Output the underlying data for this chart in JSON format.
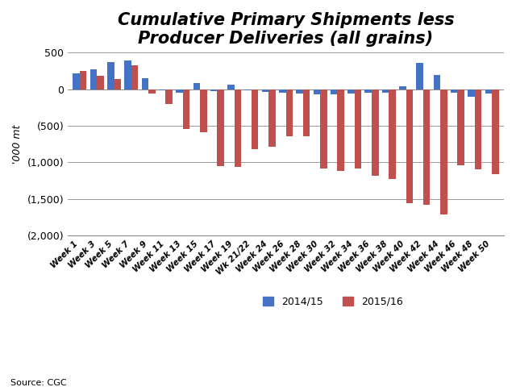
{
  "title": "Cumulative Primary Shipments less\nProducer Deliveries (all grains)",
  "ylabel": "'000 mt",
  "source": "Source: CGC",
  "ylim": [
    -2000,
    500
  ],
  "yticks": [
    500,
    0,
    -500,
    -1000,
    -1500,
    -2000
  ],
  "ytick_labels": [
    "500",
    "0",
    "(500)",
    "(1,000)",
    "(1,500)",
    "(2,000)"
  ],
  "categories": [
    "Week 1",
    "Week 3",
    "Week 5",
    "Week 7",
    "Week 9",
    "Week 11",
    "Week 13",
    "Week 15",
    "Week 17",
    "Week 19",
    "Wk 21/22",
    "Week 24",
    "Week 26",
    "Week 28",
    "Week 30",
    "Week 32",
    "Week 34",
    "Week 36",
    "Week 38",
    "Week 40",
    "Week 42",
    "Week 44",
    "Week 46",
    "Week 48",
    "Week 50"
  ],
  "blue_2014": [
    215,
    270,
    370,
    390,
    155,
    -10,
    -50,
    80,
    -25,
    65,
    -15,
    -35,
    -50,
    -60,
    -75,
    -65,
    -60,
    -50,
    -45,
    35,
    365,
    190,
    -50,
    -100,
    -55
  ],
  "red_2015": [
    245,
    185,
    140,
    325,
    -55,
    -200,
    -540,
    -590,
    -1050,
    -1060,
    -820,
    -790,
    -640,
    -640,
    -1090,
    -1120,
    -1080,
    -1180,
    -1230,
    -1560,
    -1580,
    -1718,
    -1040,
    -1095,
    -1165
  ],
  "blue_color": "#4472C4",
  "red_color": "#C0504D",
  "legend_2014": "2014/15",
  "legend_2015": "2015/16",
  "bar_width": 0.4,
  "title_fontsize": 15,
  "italic_title": true
}
